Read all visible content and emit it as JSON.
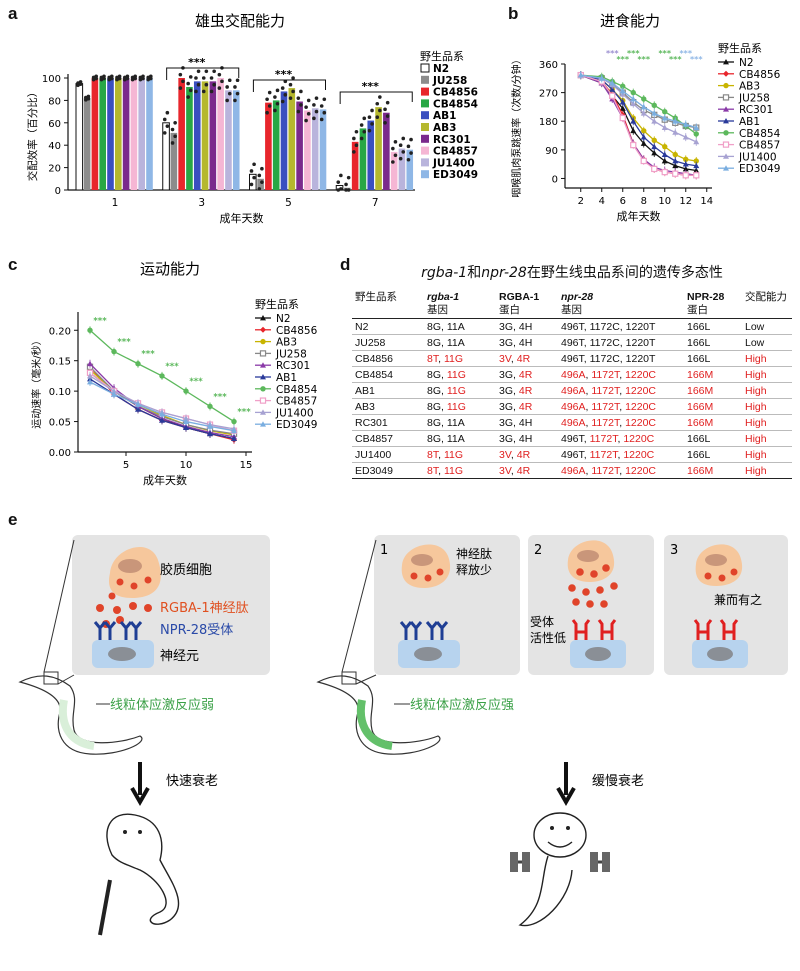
{
  "panel_letters": [
    "a",
    "b",
    "c",
    "d",
    "e"
  ],
  "chart_data": [
    {
      "type": "bar",
      "panel": "a",
      "title": "雄虫交配能力",
      "ylabel": "交配效率（百分比）",
      "xlabel": "成年天数",
      "ylim": [
        0,
        100
      ],
      "yticks": [
        0,
        20,
        40,
        60,
        80,
        100
      ],
      "categories": [
        "1",
        "3",
        "5",
        "7"
      ],
      "legend_title": "野生品系",
      "significance": [
        "***",
        "***",
        "***"
      ],
      "series": [
        {
          "name": "N2",
          "color": "#ffffff",
          "values": [
            95,
            60,
            14,
            4
          ]
        },
        {
          "name": "JU258",
          "color": "#8c8c8c",
          "values": [
            82,
            51,
            10,
            2
          ]
        },
        {
          "name": "CB4856",
          "color": "#e8262c",
          "values": [
            100,
            100,
            78,
            43
          ]
        },
        {
          "name": "CB4854",
          "color": "#28a745",
          "values": [
            100,
            92,
            80,
            55
          ]
        },
        {
          "name": "AB1",
          "color": "#3a4fc0",
          "values": [
            100,
            97,
            88,
            62
          ]
        },
        {
          "name": "AB3",
          "color": "#b5b82e",
          "values": [
            100,
            97,
            91,
            74
          ]
        },
        {
          "name": "RC301",
          "color": "#7a2a8c",
          "values": [
            100,
            97,
            79,
            69
          ]
        },
        {
          "name": "CB4857",
          "color": "#f5b6d4",
          "values": [
            100,
            100,
            71,
            34
          ]
        },
        {
          "name": "JU1400",
          "color": "#b9b4dc",
          "values": [
            100,
            89,
            73,
            37
          ]
        },
        {
          "name": "ED3049",
          "color": "#8fb7e6",
          "values": [
            100,
            89,
            72,
            36
          ]
        }
      ]
    },
    {
      "type": "line",
      "panel": "b",
      "title": "进食能力",
      "ylabel": "咽喉肌肉泵跳速率（次数/分钟）",
      "xlabel": "成年天数",
      "ylim": [
        -30,
        360
      ],
      "yticks": [
        0,
        90,
        180,
        270,
        360
      ],
      "xticks": [
        2,
        4,
        6,
        8,
        10,
        12,
        14
      ],
      "x": [
        2,
        4,
        5,
        6,
        7,
        8,
        9,
        10,
        11,
        12,
        13
      ],
      "legend_title": "野生品系",
      "series": [
        {
          "name": "N2",
          "color": "#111111",
          "marker": "triangle",
          "values": [
            325,
            300,
            260,
            220,
            150,
            110,
            80,
            55,
            40,
            30,
            25
          ]
        },
        {
          "name": "CB4856",
          "color": "#e8262c",
          "marker": "diamond",
          "values": [
            325,
            305,
            265,
            200,
            110,
            60,
            30,
            20,
            15,
            10,
            10
          ]
        },
        {
          "name": "AB3",
          "color": "#c8b400",
          "marker": "circle",
          "values": [
            325,
            310,
            280,
            245,
            190,
            150,
            120,
            100,
            75,
            60,
            55
          ]
        },
        {
          "name": "JU258",
          "color": "#888888",
          "marker": "square",
          "values": [
            325,
            315,
            295,
            270,
            240,
            215,
            200,
            185,
            175,
            165,
            160
          ]
        },
        {
          "name": "RC301",
          "color": "#8a3aa8",
          "marker": "triangle",
          "values": [
            325,
            300,
            250,
            190,
            110,
            60,
            35,
            25,
            20,
            15,
            10
          ]
        },
        {
          "name": "AB1",
          "color": "#2a3a9a",
          "marker": "triangle",
          "values": [
            325,
            310,
            280,
            240,
            180,
            130,
            100,
            75,
            55,
            45,
            40
          ]
        },
        {
          "name": "CB4854",
          "color": "#5cb85c",
          "marker": "circle",
          "values": [
            325,
            320,
            305,
            290,
            270,
            250,
            230,
            210,
            190,
            165,
            140
          ]
        },
        {
          "name": "CB4857",
          "color": "#f0a0c8",
          "marker": "square",
          "values": [
            325,
            305,
            260,
            190,
            105,
            55,
            30,
            20,
            15,
            10,
            10
          ]
        },
        {
          "name": "JU1400",
          "color": "#a7a2d2",
          "marker": "triangle",
          "values": [
            325,
            315,
            295,
            265,
            235,
            205,
            180,
            160,
            145,
            130,
            115
          ]
        },
        {
          "name": "ED3049",
          "color": "#7aaee0",
          "marker": "triangle",
          "values": [
            325,
            315,
            300,
            275,
            250,
            225,
            205,
            190,
            180,
            170,
            160
          ]
        }
      ]
    },
    {
      "type": "line",
      "panel": "c",
      "title": "运动能力",
      "ylabel": "运动速率（毫米/秒）",
      "xlabel": "成年天数",
      "ylim": [
        0,
        0.23
      ],
      "yticks": [
        0.0,
        0.05,
        0.1,
        0.15,
        0.2
      ],
      "xticks": [
        5,
        10,
        15
      ],
      "x": [
        2,
        4,
        6,
        8,
        10,
        12,
        14
      ],
      "legend_title": "野生品系",
      "significance_label": "***",
      "series": [
        {
          "name": "N2",
          "color": "#111111",
          "marker": "triangle",
          "values": [
            0.13,
            0.1,
            0.075,
            0.055,
            0.04,
            0.03,
            0.022
          ]
        },
        {
          "name": "CB4856",
          "color": "#e8262c",
          "marker": "diamond",
          "values": [
            0.14,
            0.095,
            0.07,
            0.052,
            0.04,
            0.03,
            0.02
          ]
        },
        {
          "name": "AB3",
          "color": "#c8b400",
          "marker": "circle",
          "values": [
            0.135,
            0.1,
            0.078,
            0.06,
            0.045,
            0.035,
            0.028
          ]
        },
        {
          "name": "JU258",
          "color": "#888888",
          "marker": "square",
          "values": [
            0.14,
            0.1,
            0.075,
            0.058,
            0.045,
            0.036,
            0.03
          ]
        },
        {
          "name": "RC301",
          "color": "#8a3aa8",
          "marker": "triangle",
          "values": [
            0.145,
            0.105,
            0.075,
            0.055,
            0.042,
            0.032,
            0.025
          ]
        },
        {
          "name": "AB1",
          "color": "#2a3a9a",
          "marker": "triangle",
          "values": [
            0.12,
            0.095,
            0.07,
            0.052,
            0.04,
            0.03,
            0.022
          ]
        },
        {
          "name": "CB4854",
          "color": "#5cb85c",
          "marker": "circle",
          "values": [
            0.2,
            0.165,
            0.145,
            0.125,
            0.1,
            0.075,
            0.05
          ]
        },
        {
          "name": "CB4857",
          "color": "#f0a0c8",
          "marker": "square",
          "values": [
            0.13,
            0.1,
            0.08,
            0.065,
            0.055,
            0.045,
            0.035
          ]
        },
        {
          "name": "JU1400",
          "color": "#a7a2d2",
          "marker": "triangle",
          "values": [
            0.125,
            0.1,
            0.08,
            0.065,
            0.055,
            0.045,
            0.038
          ]
        },
        {
          "name": "ED3049",
          "color": "#7aaee0",
          "marker": "triangle",
          "values": [
            0.115,
            0.095,
            0.078,
            0.062,
            0.05,
            0.042,
            0.035
          ]
        }
      ]
    }
  ],
  "table": {
    "title_gene1": "rgba-1",
    "title_and": "和",
    "title_gene2": "npr-28",
    "title_rest": "在野生线虫品系间的遗传多态性",
    "headers": [
      {
        "top": "野生品系",
        "bottom": ""
      },
      {
        "top": "rgba-1",
        "bottom": "基因"
      },
      {
        "top": "RGBA-1",
        "bottom": "蛋白"
      },
      {
        "top": "npr-28",
        "bottom": "基因"
      },
      {
        "top": "NPR-28",
        "bottom": "蛋白"
      },
      {
        "top": "交配能力",
        "bottom": ""
      }
    ],
    "rows": [
      {
        "strain": "N2",
        "g1a": "8G",
        "g1a_red": false,
        "g1b": "11A",
        "g1b_red": false,
        "p1a": "3G",
        "p1a_red": false,
        "p1b": "4H",
        "p1b_red": false,
        "g2a": "496T",
        "g2a_red": false,
        "g2b": "1172C",
        "g2b_red": false,
        "g2c": "1220T",
        "g2c_red": false,
        "p2": "166L",
        "p2_red": false,
        "mating": "Low",
        "mating_red": false
      },
      {
        "strain": "JU258",
        "g1a": "8G",
        "g1a_red": false,
        "g1b": "11A",
        "g1b_red": false,
        "p1a": "3G",
        "p1a_red": false,
        "p1b": "4H",
        "p1b_red": false,
        "g2a": "496T",
        "g2a_red": false,
        "g2b": "1172C",
        "g2b_red": false,
        "g2c": "1220T",
        "g2c_red": false,
        "p2": "166L",
        "p2_red": false,
        "mating": "Low",
        "mating_red": false
      },
      {
        "strain": "CB4856",
        "g1a": "8T",
        "g1a_red": true,
        "g1b": "11G",
        "g1b_red": true,
        "p1a": "3V",
        "p1a_red": true,
        "p1b": "4R",
        "p1b_red": true,
        "g2a": "496T",
        "g2a_red": false,
        "g2b": "1172C",
        "g2b_red": false,
        "g2c": "1220T",
        "g2c_red": false,
        "p2": "166L",
        "p2_red": false,
        "mating": "High",
        "mating_red": true
      },
      {
        "strain": "CB4854",
        "g1a": "8G",
        "g1a_red": false,
        "g1b": "11G",
        "g1b_red": true,
        "p1a": "3G",
        "p1a_red": false,
        "p1b": "4R",
        "p1b_red": true,
        "g2a": "496A",
        "g2a_red": true,
        "g2b": "1172T",
        "g2b_red": true,
        "g2c": "1220C",
        "g2c_red": true,
        "p2": "166M",
        "p2_red": true,
        "mating": "High",
        "mating_red": true
      },
      {
        "strain": "AB1",
        "g1a": "8G",
        "g1a_red": false,
        "g1b": "11G",
        "g1b_red": true,
        "p1a": "3G",
        "p1a_red": false,
        "p1b": "4R",
        "p1b_red": true,
        "g2a": "496A",
        "g2a_red": true,
        "g2b": "1172T",
        "g2b_red": true,
        "g2c": "1220C",
        "g2c_red": true,
        "p2": "166M",
        "p2_red": true,
        "mating": "High",
        "mating_red": true
      },
      {
        "strain": "AB3",
        "g1a": "8G",
        "g1a_red": false,
        "g1b": "11G",
        "g1b_red": true,
        "p1a": "3G",
        "p1a_red": false,
        "p1b": "4R",
        "p1b_red": true,
        "g2a": "496A",
        "g2a_red": true,
        "g2b": "1172T",
        "g2b_red": true,
        "g2c": "1220C",
        "g2c_red": true,
        "p2": "166M",
        "p2_red": true,
        "mating": "High",
        "mating_red": true
      },
      {
        "strain": "RC301",
        "g1a": "8G",
        "g1a_red": false,
        "g1b": "11A",
        "g1b_red": false,
        "p1a": "3G",
        "p1a_red": false,
        "p1b": "4H",
        "p1b_red": false,
        "g2a": "496A",
        "g2a_red": true,
        "g2b": "1172T",
        "g2b_red": true,
        "g2c": "1220C",
        "g2c_red": true,
        "p2": "166M",
        "p2_red": true,
        "mating": "High",
        "mating_red": true
      },
      {
        "strain": "CB4857",
        "g1a": "8G",
        "g1a_red": false,
        "g1b": "11A",
        "g1b_red": false,
        "p1a": "3G",
        "p1a_red": false,
        "p1b": "4H",
        "p1b_red": false,
        "g2a": "496T",
        "g2a_red": false,
        "g2b": "1172T",
        "g2b_red": true,
        "g2c": "1220C",
        "g2c_red": true,
        "p2": "166L",
        "p2_red": false,
        "mating": "High",
        "mating_red": true
      },
      {
        "strain": "JU1400",
        "g1a": "8T",
        "g1a_red": true,
        "g1b": "11G",
        "g1b_red": true,
        "p1a": "3V",
        "p1a_red": true,
        "p1b": "4R",
        "p1b_red": true,
        "g2a": "496T",
        "g2a_red": false,
        "g2b": "1172T",
        "g2b_red": true,
        "g2c": "1220C",
        "g2c_red": true,
        "p2": "166L",
        "p2_red": false,
        "mating": "High",
        "mating_red": true
      },
      {
        "strain": "ED3049",
        "g1a": "8T",
        "g1a_red": true,
        "g1b": "11G",
        "g1b_red": true,
        "p1a": "3V",
        "p1a_red": true,
        "p1b": "4R",
        "p1b_red": true,
        "g2a": "496A",
        "g2a_red": true,
        "g2b": "1172T",
        "g2b_red": true,
        "g2c": "1220C",
        "g2c_red": true,
        "p2": "166M",
        "p2_red": true,
        "mating": "High",
        "mating_red": true
      }
    ]
  },
  "diagram": {
    "glia_label": "胶质细胞",
    "neuropeptide_label": "RGBA-1神经肽",
    "receptor_label": "NPR-28受体",
    "neuron_label": "神经元",
    "weak_label": "线粒体应激反应弱",
    "strong_label": "线粒体应激反应强",
    "fast_aging": "快速衰老",
    "slow_aging": "缓慢衰老",
    "box_numbers": [
      "1",
      "2",
      "3"
    ],
    "box1_label_line1": "神经肽",
    "box1_label_line2": "释放少",
    "box2_label_line1": "受体",
    "box2_label_line2": "活性低",
    "box3_label": "兼而有之",
    "colors": {
      "glia": "#f6c79c",
      "nucleus": "#c9967a",
      "peptide": "#e0442a",
      "receptor_normal": "#1f3e94",
      "receptor_low": "#e02020",
      "neuron": "#b7d3ee",
      "neuron_nucleus": "#8a8f96",
      "box": "#e4e4e4",
      "worm_weak": "#d9efd9",
      "worm_strong": "#63c06a"
    }
  }
}
